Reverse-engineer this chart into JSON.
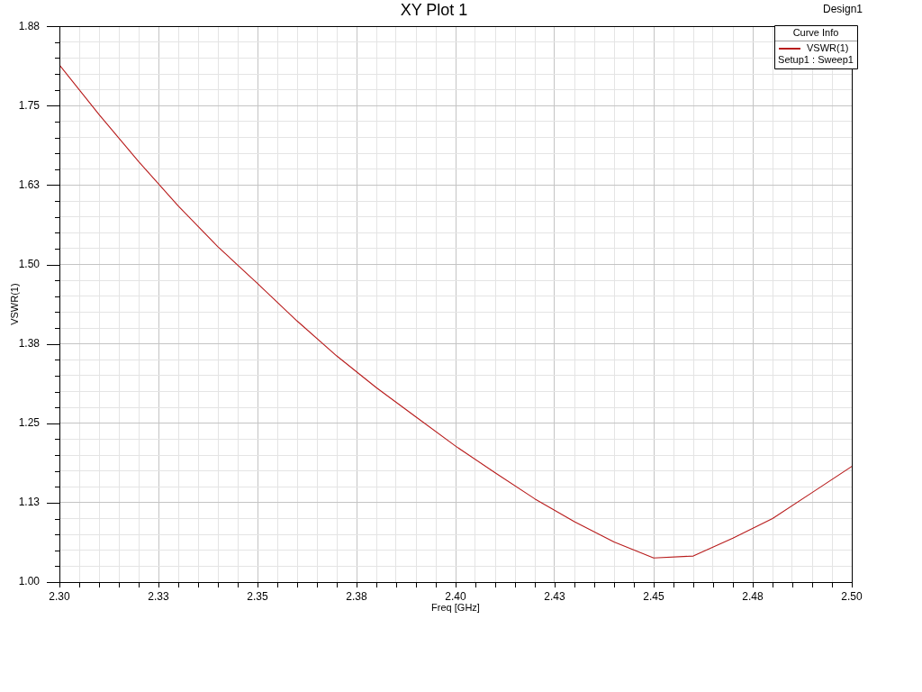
{
  "chart_data": {
    "type": "line",
    "title": "XY Plot 1",
    "xlabel": "Freq [GHz]",
    "ylabel": "VSWR(1)",
    "legend_title": "Curve Info",
    "annotations": [
      "Design1",
      "Setup1 : Sweep1"
    ],
    "x": [
      2.3,
      2.31,
      2.32,
      2.33,
      2.34,
      2.35,
      2.36,
      2.37,
      2.38,
      2.39,
      2.4,
      2.41,
      2.42,
      2.43,
      2.44,
      2.45,
      2.46,
      2.47,
      2.48,
      2.49,
      2.5
    ],
    "series": [
      {
        "name": "VSWR(1)",
        "color": "#b81c1c",
        "values": [
          1.814,
          1.736,
          1.662,
          1.592,
          1.528,
          1.47,
          1.411,
          1.356,
          1.306,
          1.26,
          1.214,
          1.172,
          1.131,
          1.095,
          1.063,
          1.038,
          1.041,
          1.069,
          1.1,
          1.141,
          1.182
        ]
      }
    ],
    "xlim": [
      2.3,
      2.5
    ],
    "xticks": [
      {
        "value": 2.3,
        "label": "2.30"
      },
      {
        "value": 2.305,
        "label": null
      },
      {
        "value": 2.31,
        "label": null
      },
      {
        "value": 2.315,
        "label": null
      },
      {
        "value": 2.32,
        "label": null
      },
      {
        "value": 2.325,
        "label": "2.33"
      },
      {
        "value": 2.33,
        "label": null
      },
      {
        "value": 2.335,
        "label": null
      },
      {
        "value": 2.34,
        "label": null
      },
      {
        "value": 2.345,
        "label": null
      },
      {
        "value": 2.35,
        "label": "2.35"
      },
      {
        "value": 2.355,
        "label": null
      },
      {
        "value": 2.36,
        "label": null
      },
      {
        "value": 2.365,
        "label": null
      },
      {
        "value": 2.37,
        "label": null
      },
      {
        "value": 2.375,
        "label": "2.38"
      },
      {
        "value": 2.38,
        "label": null
      },
      {
        "value": 2.385,
        "label": null
      },
      {
        "value": 2.39,
        "label": null
      },
      {
        "value": 2.395,
        "label": null
      },
      {
        "value": 2.4,
        "label": "2.40"
      },
      {
        "value": 2.405,
        "label": null
      },
      {
        "value": 2.41,
        "label": null
      },
      {
        "value": 2.415,
        "label": null
      },
      {
        "value": 2.42,
        "label": null
      },
      {
        "value": 2.425,
        "label": "2.43"
      },
      {
        "value": 2.43,
        "label": null
      },
      {
        "value": 2.435,
        "label": null
      },
      {
        "value": 2.44,
        "label": null
      },
      {
        "value": 2.445,
        "label": null
      },
      {
        "value": 2.45,
        "label": "2.45"
      },
      {
        "value": 2.455,
        "label": null
      },
      {
        "value": 2.46,
        "label": null
      },
      {
        "value": 2.465,
        "label": null
      },
      {
        "value": 2.47,
        "label": null
      },
      {
        "value": 2.475,
        "label": "2.48"
      },
      {
        "value": 2.48,
        "label": null
      },
      {
        "value": 2.485,
        "label": null
      },
      {
        "value": 2.49,
        "label": null
      },
      {
        "value": 2.495,
        "label": null
      },
      {
        "value": 2.5,
        "label": "2.50"
      }
    ],
    "ylim": [
      1.0,
      1.875
    ],
    "yticks": [
      {
        "value": 1.0,
        "label": "1.00"
      },
      {
        "value": 1.025,
        "label": null
      },
      {
        "value": 1.05,
        "label": null
      },
      {
        "value": 1.075,
        "label": null
      },
      {
        "value": 1.1,
        "label": null
      },
      {
        "value": 1.125,
        "label": "1.13"
      },
      {
        "value": 1.15,
        "label": null
      },
      {
        "value": 1.175,
        "label": null
      },
      {
        "value": 1.2,
        "label": null
      },
      {
        "value": 1.225,
        "label": null
      },
      {
        "value": 1.25,
        "label": "1.25"
      },
      {
        "value": 1.275,
        "label": null
      },
      {
        "value": 1.3,
        "label": null
      },
      {
        "value": 1.325,
        "label": null
      },
      {
        "value": 1.35,
        "label": null
      },
      {
        "value": 1.375,
        "label": "1.38"
      },
      {
        "value": 1.4,
        "label": null
      },
      {
        "value": 1.425,
        "label": null
      },
      {
        "value": 1.45,
        "label": null
      },
      {
        "value": 1.475,
        "label": null
      },
      {
        "value": 1.5,
        "label": "1.50"
      },
      {
        "value": 1.525,
        "label": null
      },
      {
        "value": 1.55,
        "label": null
      },
      {
        "value": 1.575,
        "label": null
      },
      {
        "value": 1.6,
        "label": null
      },
      {
        "value": 1.625,
        "label": "1.63"
      },
      {
        "value": 1.65,
        "label": null
      },
      {
        "value": 1.675,
        "label": null
      },
      {
        "value": 1.7,
        "label": null
      },
      {
        "value": 1.725,
        "label": null
      },
      {
        "value": 1.75,
        "label": "1.75"
      },
      {
        "value": 1.775,
        "label": null
      },
      {
        "value": 1.8,
        "label": null
      },
      {
        "value": 1.825,
        "label": null
      },
      {
        "value": 1.85,
        "label": null
      },
      {
        "value": 1.875,
        "label": "1.88"
      }
    ],
    "grid": true,
    "legend": "top right"
  }
}
